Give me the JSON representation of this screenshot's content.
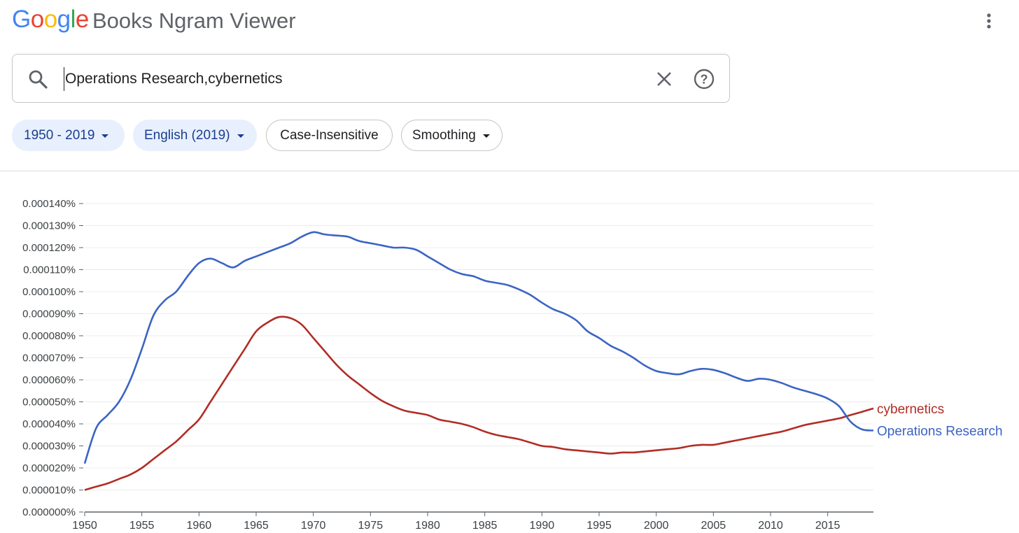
{
  "header": {
    "logo_letters": [
      "G",
      "o",
      "o",
      "g",
      "l",
      "e"
    ],
    "app_title": "Books Ngram Viewer",
    "menu_icon": "more-vert-icon"
  },
  "search": {
    "value": "Operations Research,cybernetics",
    "search_icon": "search-icon",
    "clear_icon": "close-icon",
    "help_icon": "help-icon"
  },
  "filters": {
    "year_range": "1950 - 2019",
    "corpus": "English (2019)",
    "case": "Case-Insensitive",
    "smoothing": "Smoothing"
  },
  "colors": {
    "operations_research": "#3b64c4",
    "cybernetics": "#b12d25",
    "chip_active_bg": "#e8f0fe",
    "chip_active_text": "#1a3e8f"
  },
  "chart_data": {
    "type": "line",
    "title": "",
    "xlabel": "",
    "ylabel": "",
    "xlim": [
      1950,
      2019
    ],
    "ylim": [
      0,
      0.00014
    ],
    "x_ticks": [
      "1950",
      "1955",
      "1960",
      "1965",
      "1970",
      "1975",
      "1980",
      "1985",
      "1990",
      "1995",
      "2000",
      "2005",
      "2010",
      "2015"
    ],
    "y_ticks": [
      "0.000000%",
      "0.000010%",
      "0.000020%",
      "0.000030%",
      "0.000040%",
      "0.000050%",
      "0.000060%",
      "0.000070%",
      "0.000080%",
      "0.000090%",
      "0.000100%",
      "0.000110%",
      "0.000120%",
      "0.000130%",
      "0.000140%"
    ],
    "grid": true,
    "legend": "labels at line ends",
    "series": [
      {
        "name": "cybernetics",
        "color": "#b12d25",
        "x": [
          1950,
          1951,
          1952,
          1953,
          1954,
          1955,
          1956,
          1957,
          1958,
          1959,
          1960,
          1961,
          1962,
          1963,
          1964,
          1965,
          1966,
          1967,
          1968,
          1969,
          1970,
          1971,
          1972,
          1973,
          1974,
          1975,
          1976,
          1977,
          1978,
          1979,
          1980,
          1981,
          1982,
          1983,
          1984,
          1985,
          1986,
          1987,
          1988,
          1989,
          1990,
          1991,
          1992,
          1993,
          1994,
          1995,
          1996,
          1997,
          1998,
          1999,
          2000,
          2001,
          2002,
          2003,
          2004,
          2005,
          2006,
          2007,
          2008,
          2009,
          2010,
          2011,
          2012,
          2013,
          2014,
          2015,
          2016,
          2017,
          2018,
          2019
        ],
        "values": [
          1e-05,
          1.15e-05,
          1.3e-05,
          1.5e-05,
          1.7e-05,
          2e-05,
          2.4e-05,
          2.8e-05,
          3.2e-05,
          3.7e-05,
          4.2e-05,
          5e-05,
          5.8e-05,
          6.6e-05,
          7.4e-05,
          8.2e-05,
          8.6e-05,
          8.85e-05,
          8.8e-05,
          8.5e-05,
          7.9e-05,
          7.3e-05,
          6.7e-05,
          6.2e-05,
          5.8e-05,
          5.4e-05,
          5.05e-05,
          4.8e-05,
          4.6e-05,
          4.5e-05,
          4.4e-05,
          4.2e-05,
          4.1e-05,
          4e-05,
          3.85e-05,
          3.65e-05,
          3.5e-05,
          3.4e-05,
          3.3e-05,
          3.15e-05,
          3e-05,
          2.95e-05,
          2.85e-05,
          2.8e-05,
          2.75e-05,
          2.7e-05,
          2.65e-05,
          2.7e-05,
          2.7e-05,
          2.75e-05,
          2.8e-05,
          2.85e-05,
          2.9e-05,
          3e-05,
          3.05e-05,
          3.05e-05,
          3.15e-05,
          3.25e-05,
          3.35e-05,
          3.45e-05,
          3.55e-05,
          3.65e-05,
          3.8e-05,
          3.95e-05,
          4.05e-05,
          4.15e-05,
          4.25e-05,
          4.4e-05,
          4.55e-05,
          4.7e-05
        ]
      },
      {
        "name": "Operations Research",
        "color": "#3b64c4",
        "x": [
          1950,
          1951,
          1952,
          1953,
          1954,
          1955,
          1956,
          1957,
          1958,
          1959,
          1960,
          1961,
          1962,
          1963,
          1964,
          1965,
          1966,
          1967,
          1968,
          1969,
          1970,
          1971,
          1972,
          1973,
          1974,
          1975,
          1976,
          1977,
          1978,
          1979,
          1980,
          1981,
          1982,
          1983,
          1984,
          1985,
          1986,
          1987,
          1988,
          1989,
          1990,
          1991,
          1992,
          1993,
          1994,
          1995,
          1996,
          1997,
          1998,
          1999,
          2000,
          2001,
          2002,
          2003,
          2004,
          2005,
          2006,
          2007,
          2008,
          2009,
          2010,
          2011,
          2012,
          2013,
          2014,
          2015,
          2016,
          2017,
          2018,
          2019
        ],
        "values": [
          2.2e-05,
          3.8e-05,
          4.4e-05,
          5e-05,
          6e-05,
          7.4e-05,
          8.9e-05,
          9.6e-05,
          0.0001,
          0.000107,
          0.000113,
          0.000115,
          0.000113,
          0.000111,
          0.000114,
          0.000116,
          0.000118,
          0.00012,
          0.000122,
          0.000125,
          0.000127,
          0.000126,
          0.0001255,
          0.000125,
          0.000123,
          0.000122,
          0.000121,
          0.00012,
          0.00012,
          0.000119,
          0.000116,
          0.000113,
          0.00011,
          0.000108,
          0.000107,
          0.000105,
          0.000104,
          0.000103,
          0.000101,
          9.85e-05,
          9.5e-05,
          9.2e-05,
          9e-05,
          8.7e-05,
          8.2e-05,
          7.9e-05,
          7.55e-05,
          7.3e-05,
          7e-05,
          6.65e-05,
          6.4e-05,
          6.3e-05,
          6.25e-05,
          6.4e-05,
          6.5e-05,
          6.45e-05,
          6.3e-05,
          6.1e-05,
          5.95e-05,
          6.05e-05,
          6e-05,
          5.85e-05,
          5.65e-05,
          5.5e-05,
          5.35e-05,
          5.15e-05,
          4.8e-05,
          4.1e-05,
          3.75e-05,
          3.7e-05
        ]
      }
    ]
  }
}
